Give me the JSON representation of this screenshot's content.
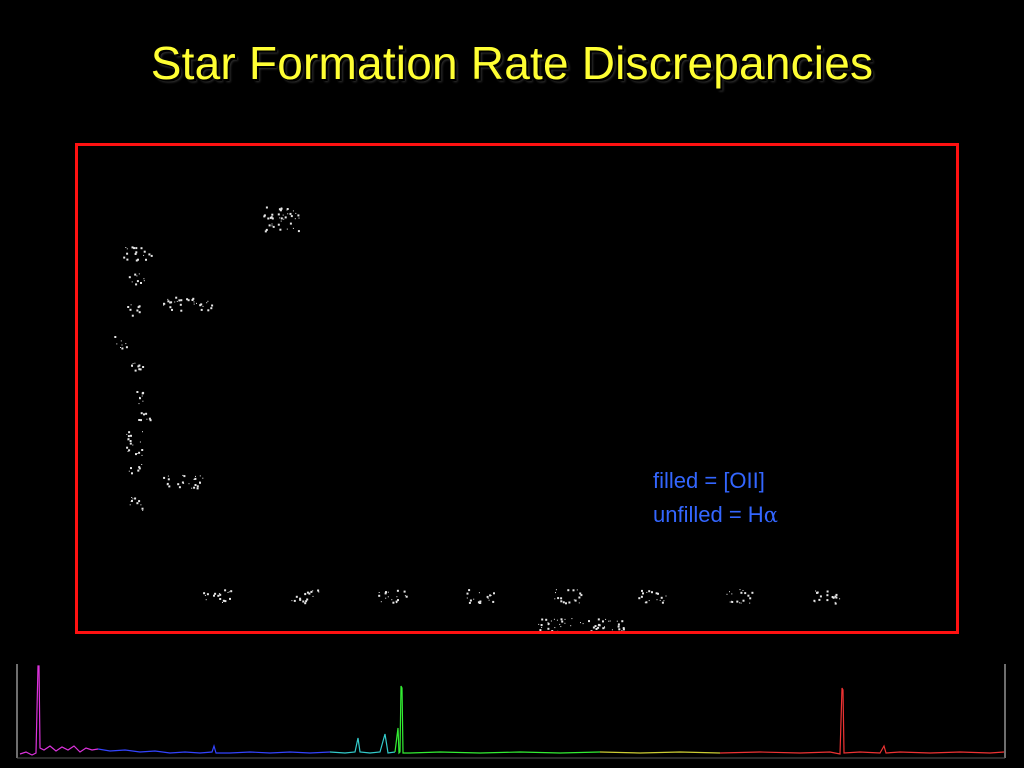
{
  "slide": {
    "title": "Star Formation Rate Discrepancies"
  },
  "legend": {
    "filled_text": "filled = [OII]",
    "unfilled_prefix": "unfilled = H",
    "unfilled_symbol": "α"
  },
  "colors": {
    "background": "#000000",
    "title": "#ffff33",
    "frame": "#ff1111",
    "legend_text": "#3366ff",
    "plot_marks": "#e6e6e6"
  },
  "figure": {
    "description_visible": "faint degraded plot with scattered white marks; labels illegible"
  },
  "spectrum_strip": {
    "visible": true
  }
}
